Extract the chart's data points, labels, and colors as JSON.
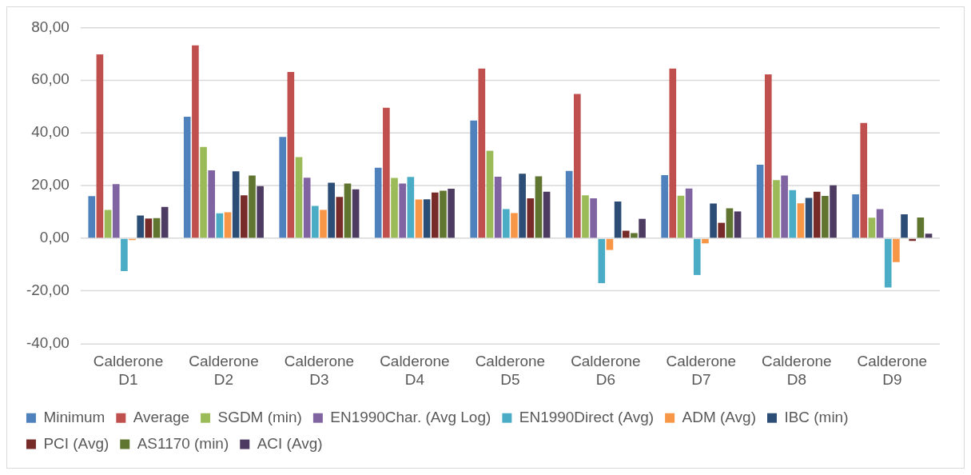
{
  "chart_data": {
    "type": "bar",
    "categories": [
      "Calderone D1",
      "Calderone D2",
      "Calderone D3",
      "Calderone D4",
      "Calderone D5",
      "Calderone D6",
      "Calderone D7",
      "Calderone D8",
      "Calderone D9"
    ],
    "series": [
      {
        "name": "Minimum",
        "color": "#4f81bd",
        "values": [
          16.0,
          46.1,
          38.5,
          26.8,
          44.7,
          25.6,
          24.0,
          27.9,
          16.7
        ]
      },
      {
        "name": "Average",
        "color": "#c0504d",
        "values": [
          69.8,
          73.2,
          63.1,
          49.5,
          64.4,
          54.8,
          64.4,
          62.2,
          43.8
        ]
      },
      {
        "name": "SGDM (min)",
        "color": "#9bbb59",
        "values": [
          10.8,
          34.7,
          30.8,
          22.9,
          33.2,
          16.3,
          16.2,
          22.1,
          7.8
        ]
      },
      {
        "name": "EN1990Char. (Avg Log)",
        "color": "#8064a2",
        "values": [
          20.6,
          25.8,
          23.0,
          20.8,
          23.4,
          15.2,
          18.9,
          23.8,
          11.1
        ]
      },
      {
        "name": "EN1990Direct (Avg)",
        "color": "#4bacc6",
        "values": [
          -12.4,
          9.5,
          12.3,
          23.3,
          11.1,
          -17.0,
          -13.9,
          18.3,
          -18.6
        ]
      },
      {
        "name": "ADM (Avg)",
        "color": "#f79646",
        "values": [
          -0.7,
          9.9,
          10.8,
          14.7,
          9.6,
          -4.4,
          -1.9,
          13.3,
          -9.0
        ]
      },
      {
        "name": "IBC (min)",
        "color": "#2c4d75",
        "values": [
          8.7,
          25.4,
          21.1,
          14.8,
          24.5,
          14.0,
          13.2,
          15.3,
          9.1
        ]
      },
      {
        "name": "PCI (Avg)",
        "color": "#772c2a",
        "values": [
          7.5,
          16.3,
          15.7,
          17.4,
          15.2,
          2.9,
          5.9,
          17.7,
          -1.0
        ]
      },
      {
        "name": "AS1170 (min)",
        "color": "#5f7530",
        "values": [
          7.7,
          23.8,
          20.8,
          18.1,
          23.5,
          2.0,
          11.4,
          16.1,
          7.9
        ]
      },
      {
        "name": "ACI (Avg)",
        "color": "#4d3b62",
        "values": [
          11.9,
          19.8,
          18.6,
          18.8,
          17.7,
          7.4,
          10.2,
          20.1,
          1.8
        ]
      }
    ],
    "ylim": [
      -40,
      80
    ],
    "yticks": [
      {
        "value": -40,
        "label": "-40,00"
      },
      {
        "value": -20,
        "label": "-20,00"
      },
      {
        "value": 0,
        "label": "0,00"
      },
      {
        "value": 20,
        "label": "20,00"
      },
      {
        "value": 40,
        "label": "40,00"
      },
      {
        "value": 60,
        "label": "60,00"
      },
      {
        "value": 80,
        "label": "80,00"
      }
    ],
    "grid": "y",
    "legend": "bottom"
  }
}
